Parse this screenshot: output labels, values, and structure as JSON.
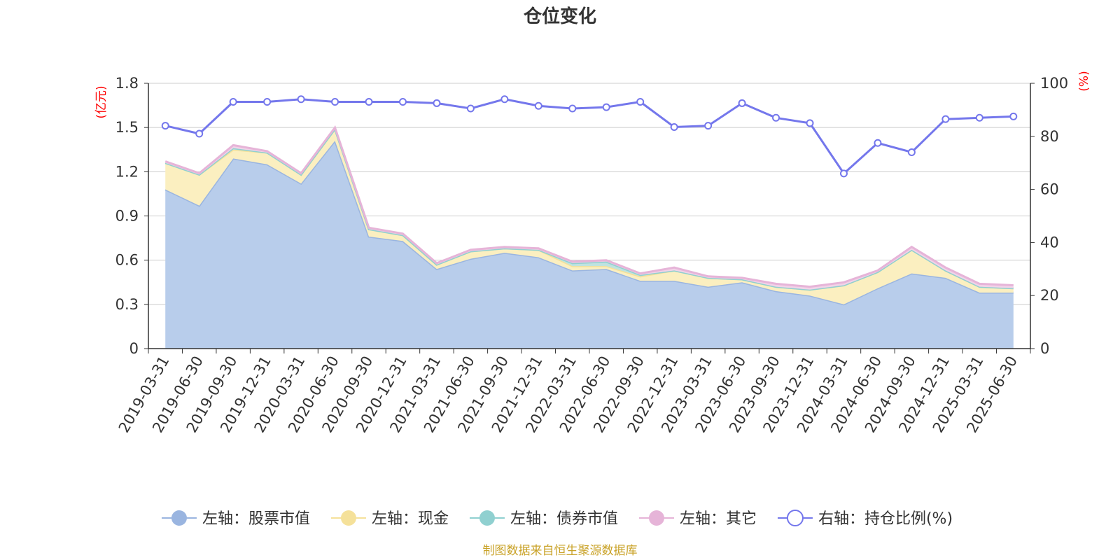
{
  "chart_data": {
    "type": "area",
    "title": "仓位变化",
    "left_unit": "(亿元)",
    "right_unit": "(%)",
    "source": "制图数据来自恒生聚源数据库",
    "categories": [
      "2019-03-31",
      "2019-06-30",
      "2019-09-30",
      "2019-12-31",
      "2020-03-31",
      "2020-06-30",
      "2020-09-30",
      "2020-12-31",
      "2021-03-31",
      "2021-06-30",
      "2021-09-30",
      "2021-12-31",
      "2022-03-31",
      "2022-06-30",
      "2022-09-30",
      "2022-12-31",
      "2023-03-31",
      "2023-06-30",
      "2023-09-30",
      "2023-12-31",
      "2024-03-31",
      "2024-06-30",
      "2024-09-30",
      "2024-12-31",
      "2025-03-31",
      "2025-06-30"
    ],
    "y_left": {
      "min": 0,
      "max": 1.8,
      "ticks": [
        "0",
        "0.3",
        "0.6",
        "0.9",
        "1.2",
        "1.5",
        "1.8"
      ]
    },
    "y_right": {
      "min": 0,
      "max": 100,
      "ticks": [
        "0",
        "20",
        "40",
        "60",
        "80",
        "100"
      ]
    },
    "series": [
      {
        "name": "左轴：股票市值",
        "axis": "left",
        "color": "#9ab5e0",
        "fill": "#b8cdeb",
        "values": [
          1.08,
          0.97,
          1.29,
          1.25,
          1.12,
          1.41,
          0.76,
          0.73,
          0.54,
          0.61,
          0.65,
          0.62,
          0.53,
          0.54,
          0.46,
          0.46,
          0.42,
          0.45,
          0.39,
          0.36,
          0.3,
          0.41,
          0.51,
          0.48,
          0.38,
          0.38
        ]
      },
      {
        "name": "左轴：现金",
        "axis": "left",
        "color": "#f5e19a",
        "fill": "#fbefc0",
        "values": [
          0.18,
          0.21,
          0.06,
          0.08,
          0.06,
          0.08,
          0.05,
          0.04,
          0.03,
          0.05,
          0.03,
          0.05,
          0.03,
          0.02,
          0.03,
          0.07,
          0.06,
          0.02,
          0.03,
          0.04,
          0.13,
          0.11,
          0.16,
          0.05,
          0.04,
          0.03
        ]
      },
      {
        "name": "左轴：债券市值",
        "axis": "left",
        "color": "#90d0d0",
        "fill": "#bfe3e0",
        "values": [
          0,
          0,
          0.01,
          0,
          0,
          0,
          0,
          0,
          0,
          0,
          0,
          0,
          0.02,
          0.03,
          0.01,
          0,
          0,
          0,
          0,
          0,
          0,
          0,
          0,
          0,
          0,
          0
        ]
      },
      {
        "name": "左轴：其它",
        "axis": "left",
        "color": "#e6b4d8",
        "fill": "#f1d3e8",
        "values": [
          0.01,
          0.01,
          0.02,
          0.01,
          0.01,
          0.01,
          0.01,
          0.01,
          0.01,
          0.01,
          0.01,
          0.01,
          0.01,
          0.01,
          0.01,
          0.02,
          0.01,
          0.01,
          0.02,
          0.02,
          0.02,
          0.01,
          0.02,
          0.02,
          0.02,
          0.02
        ]
      },
      {
        "name": "右轴：持仓比例(%)",
        "axis": "right",
        "color": "#7477ec",
        "values": [
          84,
          81,
          93,
          93,
          94,
          93,
          93,
          93,
          92.5,
          90.5,
          94,
          91.5,
          90.5,
          91,
          93,
          83.5,
          84,
          92.5,
          87,
          85,
          66,
          77.5,
          74,
          86.5,
          87,
          87.5
        ]
      }
    ]
  }
}
